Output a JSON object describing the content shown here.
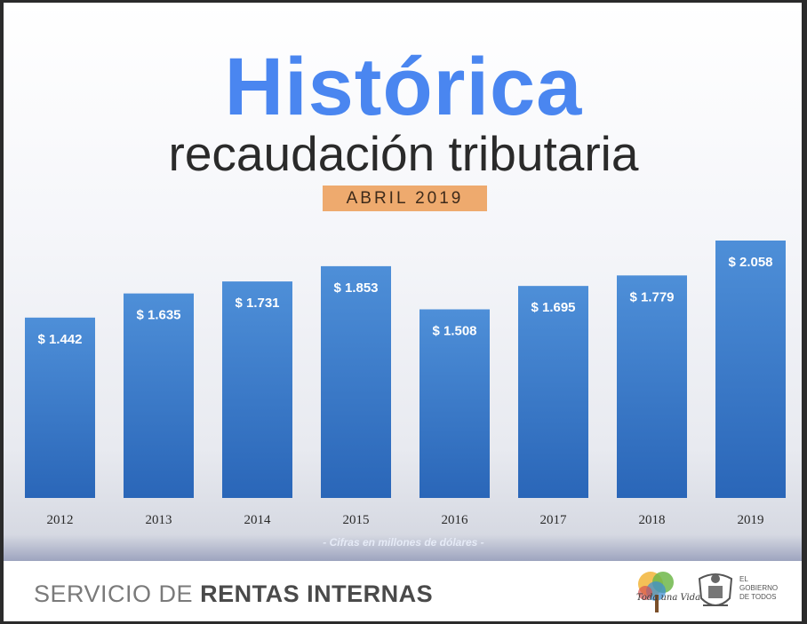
{
  "header": {
    "title": "Histórica",
    "subtitle": "recaudación tributaria",
    "badge": "ABRIL 2019"
  },
  "footer": {
    "brand_light": "SERVICIO DE",
    "brand_bold_1": "RENTAS INTERNAS",
    "tree_logo_text": "Toda una Vida",
    "gov_lines": [
      "EL",
      "GOBIERNO",
      "DE TODOS"
    ]
  },
  "colors": {
    "title": "#4a86f0",
    "bar": "#4a8ad4",
    "bar_dark": "#1f56a8",
    "badge": "#eeaa6e"
  },
  "chart_data": {
    "type": "bar",
    "title": "Histórica recaudación tributaria",
    "subtitle": "ABRIL 2019",
    "categories": [
      "2012",
      "2013",
      "2014",
      "2015",
      "2016",
      "2017",
      "2018",
      "2019"
    ],
    "values": [
      1442,
      1635,
      1731,
      1853,
      1508,
      1695,
      1779,
      2058
    ],
    "value_labels": [
      "$ 1.442",
      "$ 1.635",
      "$ 1.731",
      "$ 1.853",
      "$ 1.508",
      "$ 1.695",
      "$ 1.779",
      "$ 2.058"
    ],
    "note": "- Cifras en millones de dólares -",
    "xlabel": "",
    "ylabel": "",
    "grid": false
  }
}
